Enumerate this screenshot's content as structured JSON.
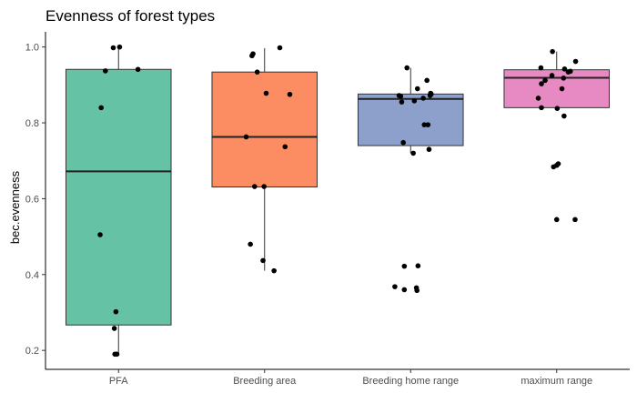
{
  "chart_data": {
    "type": "boxplot",
    "title": "Evenness of forest types",
    "xlabel": "",
    "ylabel": "bec.evenness",
    "ylim": [
      0.15,
      1.04
    ],
    "yticks": [
      0.2,
      0.4,
      0.6,
      0.8,
      1.0
    ],
    "ytick_labels": [
      "0.2",
      "0.4",
      "0.6",
      "0.8",
      "1.0"
    ],
    "grid": false,
    "legend": "none",
    "categories": [
      "PFA",
      "Breeding area",
      "Breeding home range",
      "maximum range"
    ],
    "colors": [
      "#66c2a5",
      "#fc8d62",
      "#8da0cb",
      "#e78ac3"
    ],
    "boxes": [
      {
        "category": "PFA",
        "q1": 0.267,
        "median": 0.672,
        "q3": 0.941,
        "whisker_low": 0.19,
        "whisker_high": 0.999
      },
      {
        "category": "Breeding area",
        "q1": 0.631,
        "median": 0.763,
        "q3": 0.934,
        "whisker_low": 0.41,
        "whisker_high": 0.997
      },
      {
        "category": "Breeding home range",
        "q1": 0.74,
        "median": 0.863,
        "q3": 0.876,
        "whisker_low": 0.72,
        "whisker_high": 0.945
      },
      {
        "category": "maximum range",
        "q1": 0.84,
        "median": 0.919,
        "q3": 0.94,
        "whisker_low": 0.84,
        "whisker_high": 0.988
      }
    ],
    "points": [
      {
        "category": "PFA",
        "values": [
          0.998,
          1.0,
          0.937,
          0.941,
          0.84,
          0.505,
          0.302,
          0.258,
          0.19,
          0.19
        ],
        "jitter": [
          -0.1,
          0.02,
          -0.25,
          0.37,
          -0.33,
          -0.35,
          -0.05,
          -0.08,
          -0.07,
          -0.03
        ]
      },
      {
        "category": "Breeding area",
        "values": [
          0.998,
          0.977,
          0.982,
          0.934,
          0.878,
          0.875,
          0.763,
          0.737,
          0.632,
          0.632,
          0.48,
          0.437,
          0.41
        ],
        "jitter": [
          0.29,
          -0.24,
          -0.22,
          -0.14,
          0.03,
          0.48,
          -0.35,
          0.39,
          -0.19,
          -0.01,
          -0.27,
          -0.03,
          0.18
        ]
      },
      {
        "category": "Breeding home range",
        "values": [
          0.945,
          0.89,
          0.912,
          0.872,
          0.87,
          0.872,
          0.876,
          0.878,
          0.855,
          0.858,
          0.865,
          0.795,
          0.795,
          0.748,
          0.73,
          0.72,
          0.422,
          0.423,
          0.368,
          0.36,
          0.365,
          0.358
        ],
        "jitter": [
          -0.07,
          0.13,
          0.31,
          -0.22,
          -0.19,
          0.37,
          0.39,
          0.38,
          -0.17,
          0.07,
          0.24,
          0.26,
          0.33,
          -0.14,
          0.35,
          0.05,
          -0.12,
          0.14,
          -0.3,
          -0.12,
          0.11,
          0.12
        ]
      },
      {
        "category": "maximum range",
        "values": [
          0.988,
          0.962,
          0.945,
          0.942,
          0.936,
          0.934,
          0.925,
          0.918,
          0.912,
          0.903,
          0.89,
          0.865,
          0.84,
          0.838,
          0.818,
          0.692,
          0.688,
          0.684,
          0.545,
          0.545
        ],
        "jitter": [
          -0.08,
          0.36,
          -0.3,
          0.15,
          0.26,
          0.22,
          -0.09,
          0.13,
          -0.22,
          -0.29,
          0.1,
          -0.35,
          -0.29,
          0.01,
          0.14,
          0.03,
          0.0,
          -0.06,
          0.0,
          0.35
        ]
      }
    ]
  }
}
